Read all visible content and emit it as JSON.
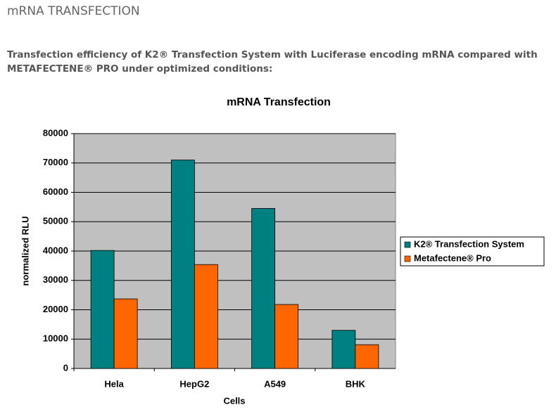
{
  "header": {
    "title": "mRNA TRANSFECTION",
    "description": "Transfection efficiency of K2® Transfection System with Luciferase encoding mRNA compared with METAFECTENE® PRO under optimized conditions:"
  },
  "chart_data": {
    "type": "bar",
    "title": "mRNA Transfection",
    "x_label": "Cells",
    "y_label": "normalized RLU",
    "categories": [
      "Hela",
      "HepG2",
      "A549",
      "BHK"
    ],
    "series": [
      {
        "name": "K2®  Transfection System",
        "color": "#008080",
        "values": [
          40200,
          71000,
          54500,
          13000
        ]
      },
      {
        "name": "Metafectene® Pro",
        "color": "#ff6600",
        "values": [
          23700,
          35400,
          21800,
          8100
        ]
      }
    ],
    "ylim": [
      0,
      80000
    ],
    "yticks": [
      0,
      10000,
      20000,
      30000,
      40000,
      50000,
      60000,
      70000,
      80000
    ],
    "grid": true,
    "plot_background": "#c0c0c0",
    "legend": "right"
  }
}
